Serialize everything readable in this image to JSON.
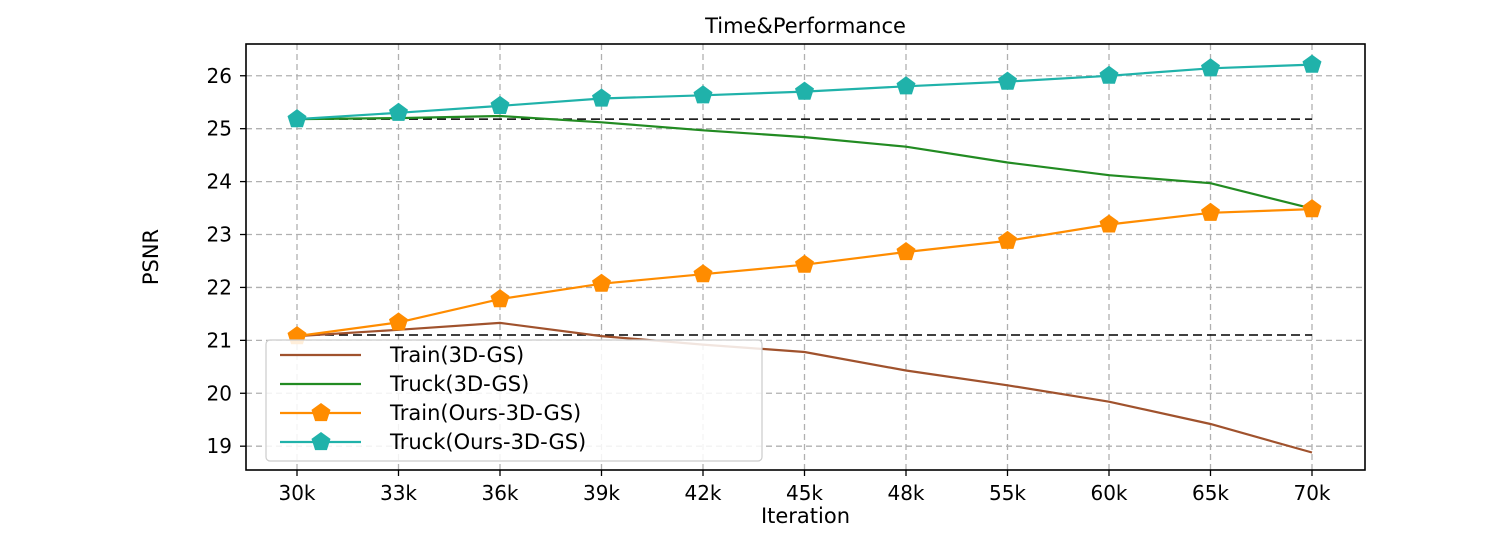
{
  "chart_data": {
    "type": "line",
    "title": "Time&Performance",
    "xlabel": "Iteration",
    "ylabel": "PSNR",
    "categories": [
      "30k",
      "33k",
      "36k",
      "39k",
      "42k",
      "45k",
      "48k",
      "55k",
      "60k",
      "65k",
      "70k"
    ],
    "ylim": [
      18.55,
      26.6
    ],
    "yticks": [
      19,
      20,
      21,
      22,
      23,
      24,
      25,
      26
    ],
    "grid": true,
    "legend_position": "lower-left",
    "reference_lines": [
      25.18,
      21.1
    ],
    "series": [
      {
        "name": "Train(3D-GS)",
        "color": "#a0522d",
        "marker": "none",
        "values": [
          21.08,
          21.2,
          21.33,
          21.08,
          20.92,
          20.78,
          20.43,
          20.15,
          19.84,
          19.42,
          18.88
        ]
      },
      {
        "name": "Truck(3D-GS)",
        "color": "#228b22",
        "marker": "none",
        "values": [
          25.18,
          25.2,
          25.24,
          25.12,
          24.97,
          24.84,
          24.66,
          24.36,
          24.12,
          23.97,
          23.49
        ]
      },
      {
        "name": "Train(Ours-3D-GS)",
        "color": "#ff8c00",
        "marker": "pentagon",
        "values": [
          21.08,
          21.34,
          21.78,
          22.07,
          22.25,
          22.43,
          22.67,
          22.88,
          23.19,
          23.41,
          23.48
        ]
      },
      {
        "name": "Truck(Ours-3D-GS)",
        "color": "#20b2aa",
        "marker": "pentagon",
        "values": [
          25.18,
          25.3,
          25.43,
          25.57,
          25.63,
          25.7,
          25.8,
          25.89,
          26.0,
          26.14,
          26.21
        ]
      }
    ]
  }
}
